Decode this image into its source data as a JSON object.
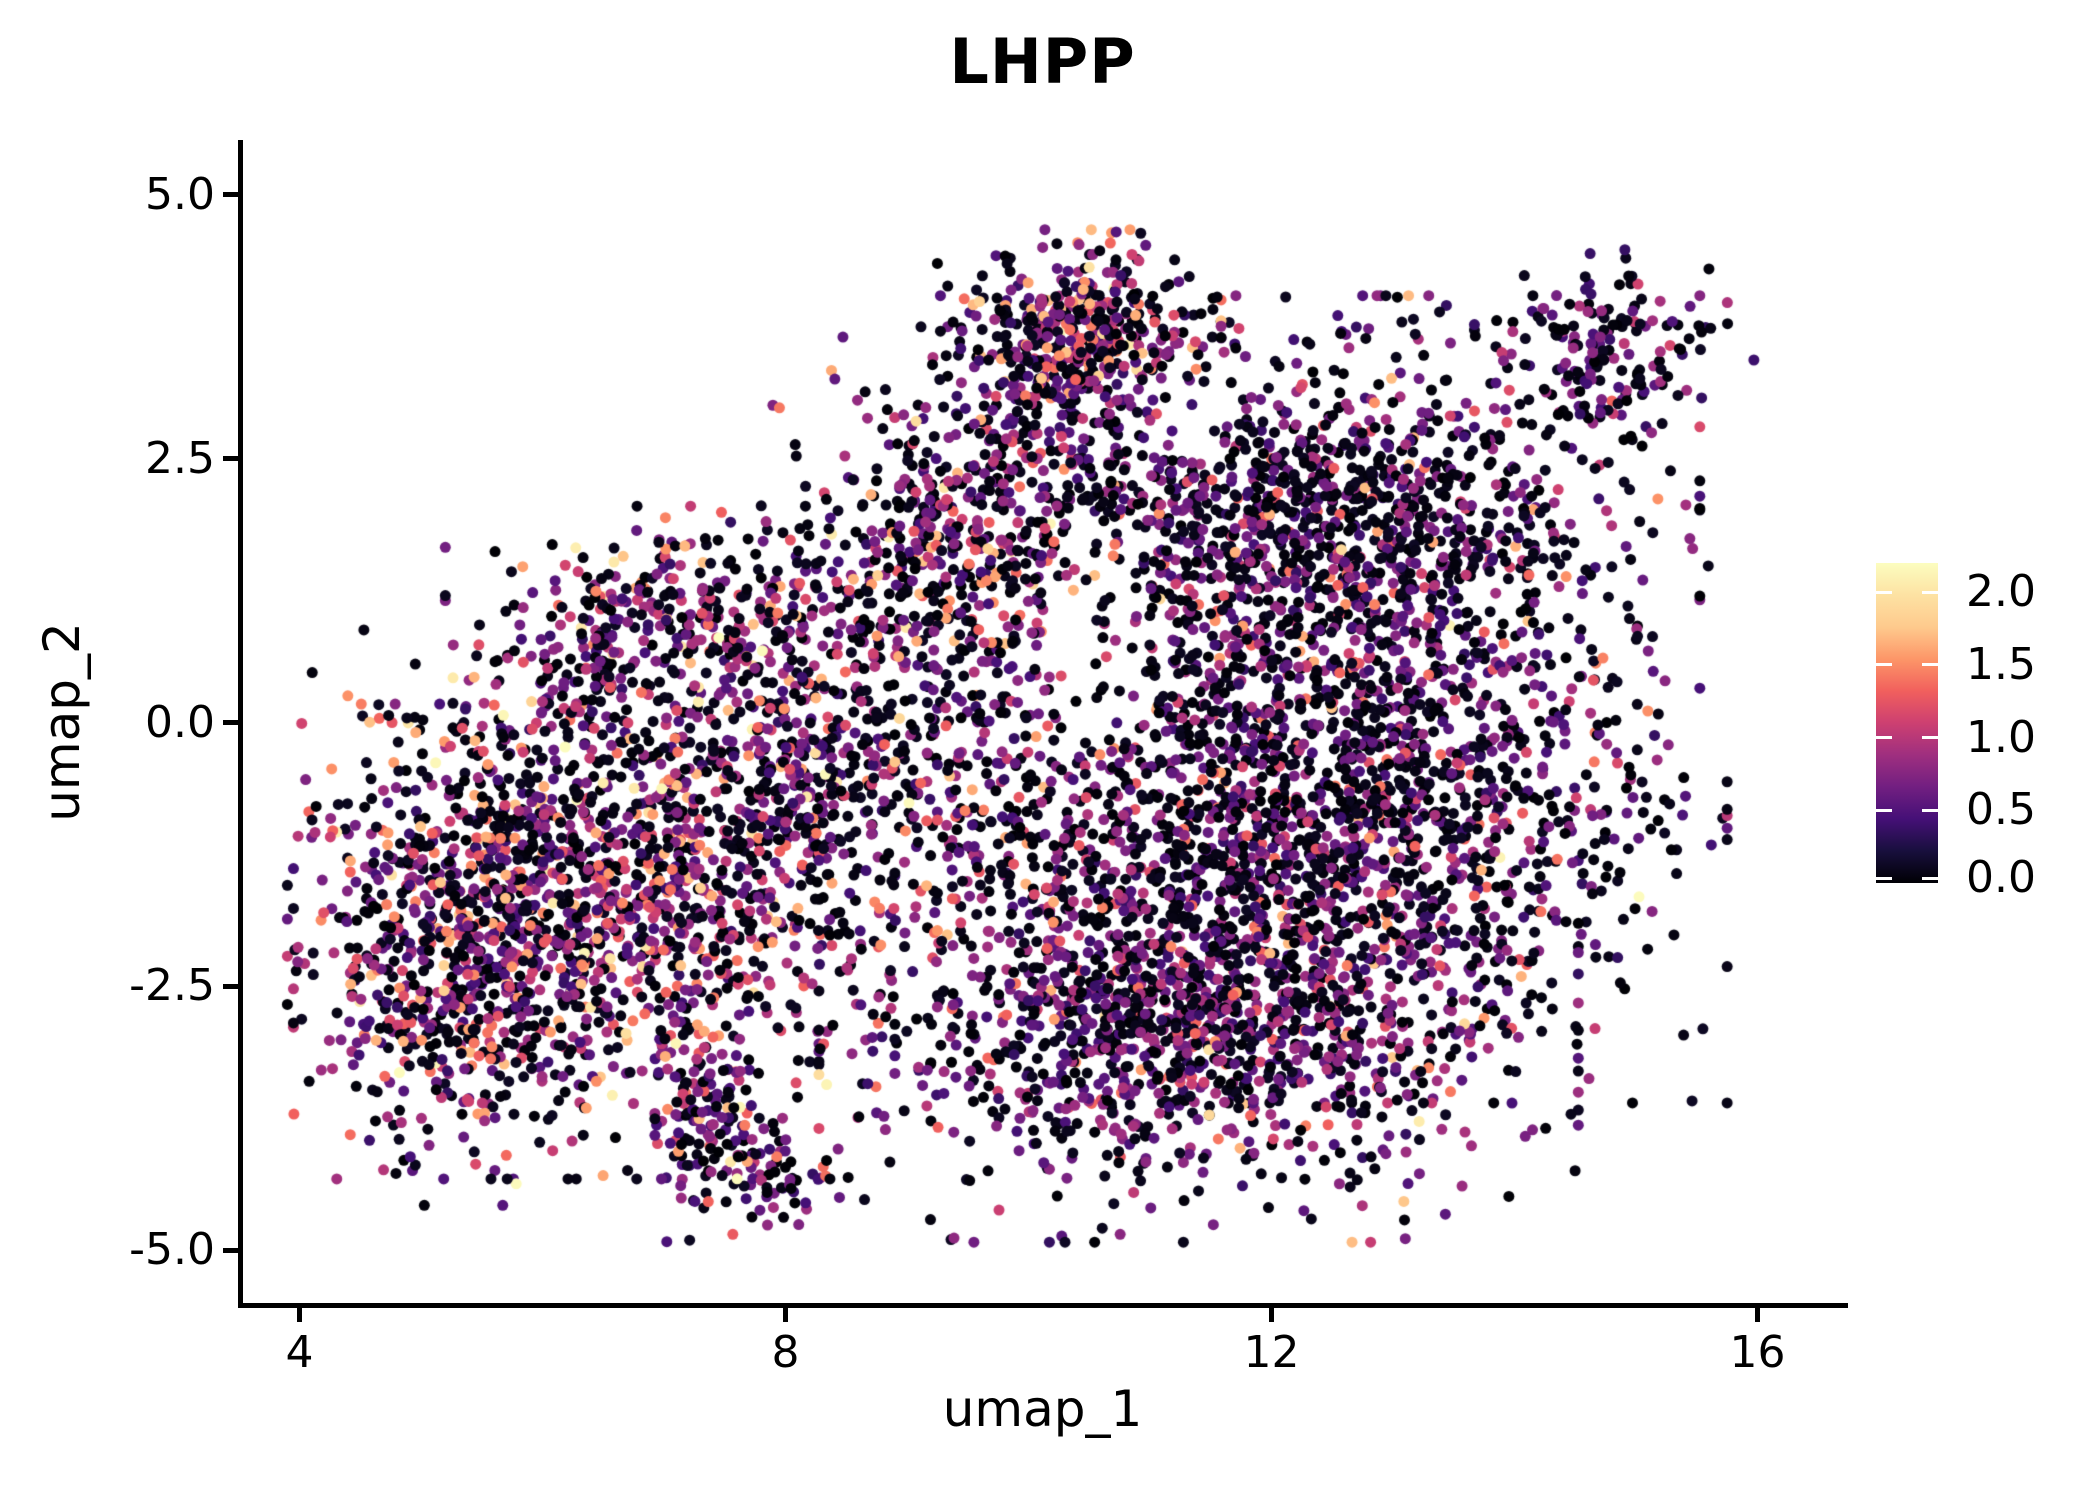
{
  "title": "LHPP",
  "colors": {
    "background": "#ffffff",
    "axis": "#000000",
    "text": "#000000",
    "colorbar_tick": "#ffffff"
  },
  "chart_data": {
    "type": "scatter",
    "title": "LHPP",
    "xlabel": "umap_1",
    "ylabel": "umap_2",
    "xlim": [
      3.51,
      16.72
    ],
    "ylim": [
      -5.52,
      5.52
    ],
    "x_ticks": [
      4,
      8,
      12,
      16
    ],
    "x_tick_labels": [
      "4",
      "8",
      "12",
      "16"
    ],
    "y_ticks": [
      5.0,
      2.5,
      0.0,
      -2.5,
      -5.0
    ],
    "y_tick_labels": [
      "5.0",
      "2.5",
      "0.0",
      "-2.5",
      "-5.0"
    ],
    "grid": false,
    "legend_position": "right",
    "point_radius_px": 5.5,
    "seed": 7,
    "colorbar": {
      "label_values": [
        "2.0",
        "1.5",
        "1.0",
        "0.5",
        "0.0"
      ],
      "tick_values": [
        2.0,
        1.5,
        1.0,
        0.5,
        0.0
      ],
      "vmin": 0.0,
      "vmax": 2.2,
      "colormap": "magma",
      "stops": [
        [
          0.0,
          "#000004"
        ],
        [
          0.1,
          "#180f3d"
        ],
        [
          0.2,
          "#451077"
        ],
        [
          0.3,
          "#721f81"
        ],
        [
          0.4,
          "#9f2f7f"
        ],
        [
          0.5,
          "#cd4071"
        ],
        [
          0.6,
          "#f1605d"
        ],
        [
          0.7,
          "#fd9668"
        ],
        [
          0.8,
          "#feca8d"
        ],
        [
          0.9,
          "#fde2a3"
        ],
        [
          1.0,
          "#fcfdbf"
        ]
      ]
    },
    "value_bands": [
      [
        0.0,
        0.12
      ],
      [
        0.35,
        0.95
      ],
      [
        0.95,
        1.4
      ],
      [
        1.4,
        1.75
      ],
      [
        1.8,
        2.2
      ]
    ],
    "mixes": {
      "warm": [
        0.42,
        0.33,
        0.13,
        0.09,
        0.03
      ],
      "mixed_warm": [
        0.46,
        0.34,
        0.11,
        0.07,
        0.02
      ],
      "mixed": [
        0.48,
        0.36,
        0.1,
        0.05,
        0.01
      ],
      "dark_purple": [
        0.53,
        0.37,
        0.07,
        0.025,
        0.005
      ],
      "purple_heavy": [
        0.43,
        0.45,
        0.09,
        0.025,
        0.005
      ],
      "sparse_dark": [
        0.56,
        0.32,
        0.08,
        0.035,
        0.005
      ],
      "satellite": [
        0.5,
        0.43,
        0.06,
        0.01,
        0.0
      ]
    },
    "clusters": [
      {
        "name": "top-protrusion",
        "cx": 10.46,
        "cy": 3.67,
        "sx": 0.45,
        "sy": 0.4,
        "n": 450,
        "mix": "warm"
      },
      {
        "name": "upper-mid",
        "cx": 9.6,
        "cy": 1.92,
        "sx": 0.72,
        "sy": 0.75,
        "n": 550,
        "mix": "mixed_warm"
      },
      {
        "name": "upper-right",
        "cx": 12.4,
        "cy": 1.92,
        "sx": 1.25,
        "sy": 0.85,
        "n": 1250,
        "mix": "dark_purple"
      },
      {
        "name": "right-core",
        "cx": 12.5,
        "cy": -0.73,
        "sx": 1.3,
        "sy": 1.15,
        "n": 1750,
        "mix": "dark_purple"
      },
      {
        "name": "bottom-right",
        "cx": 11.4,
        "cy": -2.8,
        "sx": 1.25,
        "sy": 0.85,
        "n": 1250,
        "mix": "purple_heavy"
      },
      {
        "name": "center",
        "cx": 9.8,
        "cy": -0.7,
        "sx": 1.1,
        "sy": 1.2,
        "n": 450,
        "mix": "sparse_dark"
      },
      {
        "name": "left-wing",
        "cx": 7.45,
        "cy": 1.0,
        "sx": 0.9,
        "sy": 0.42,
        "n": 320,
        "mix": "mixed_warm"
      },
      {
        "name": "wing-tip",
        "cx": 6.35,
        "cy": 0.64,
        "sx": 0.38,
        "sy": 0.36,
        "n": 90,
        "mix": "mixed_warm"
      },
      {
        "name": "left-lobe",
        "cx": 6.4,
        "cy": -1.7,
        "sx": 1.0,
        "sy": 1.05,
        "n": 1350,
        "mix": "warm"
      },
      {
        "name": "left-edge",
        "cx": 5.2,
        "cy": -2.2,
        "sx": 0.5,
        "sy": 0.95,
        "n": 420,
        "mix": "mixed_warm"
      },
      {
        "name": "bridge",
        "cx": 8.1,
        "cy": -0.55,
        "sx": 0.75,
        "sy": 0.85,
        "n": 450,
        "mix": "mixed"
      },
      {
        "name": "tail-upper",
        "cx": 7.37,
        "cy": -3.77,
        "sx": 0.22,
        "sy": 0.48,
        "n": 110,
        "mix": "purple_heavy"
      },
      {
        "name": "tail-hook",
        "cx": 7.9,
        "cy": -4.3,
        "sx": 0.3,
        "sy": 0.22,
        "n": 70,
        "mix": "purple_heavy"
      },
      {
        "name": "satellite",
        "cx": 14.82,
        "cy": 3.58,
        "sx": 0.46,
        "sy": 0.36,
        "n": 165,
        "mix": "satellite"
      }
    ],
    "holes": [
      {
        "cx": 10.55,
        "cy": 0.9,
        "rx": 0.45,
        "ry": 1.1,
        "reject": 0.7
      },
      {
        "cx": 11.15,
        "cy": 3.0,
        "rx": 0.42,
        "ry": 0.5,
        "reject": 0.6
      },
      {
        "cx": 8.9,
        "cy": -1.5,
        "rx": 0.5,
        "ry": 0.6,
        "reject": 0.45
      }
    ],
    "outliers": [
      [
        14.7,
        2.44,
        1.05
      ],
      [
        14.2,
        2.2,
        0.0
      ],
      [
        15.05,
        2.62,
        0.0
      ],
      [
        14.9,
        2.68,
        0.0
      ],
      [
        4.78,
        -1.84,
        1.5
      ],
      [
        9.25,
        4.35,
        0.0
      ],
      [
        13.9,
        1.6,
        0.0
      ],
      [
        14.45,
        0.2,
        1.1
      ]
    ]
  }
}
